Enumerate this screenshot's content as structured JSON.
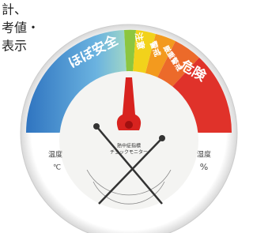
{
  "caption_lines": [
    "計、",
    "考値・",
    "表示"
  ],
  "zones": [
    "ほぼ安全",
    "注意",
    "警戒",
    "厳重警戒",
    "危険"
  ],
  "center_text": [
    "熱中症指標",
    "チェックモニター"
  ],
  "labels": {
    "temperature": "温度",
    "temperature_unit": "℃",
    "humidity": "湿度",
    "humidity_unit": "%"
  }
}
